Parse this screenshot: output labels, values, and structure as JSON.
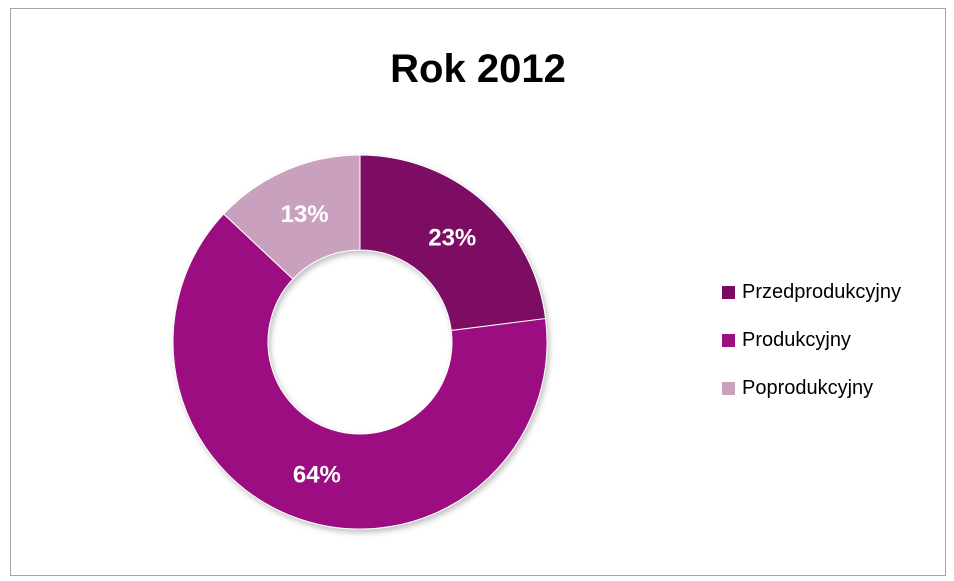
{
  "chart_data": {
    "type": "pie",
    "title": "Rok 2012",
    "categories": [
      "Przedprodukcyjny",
      "Produkcyjny",
      "Poprodukcyjny"
    ],
    "values": [
      23,
      64,
      13
    ],
    "data_labels": [
      "23%",
      "64%",
      "13%"
    ],
    "colors": [
      "#7b0a62",
      "#9b0f80",
      "#c9a0bd"
    ],
    "donut": true,
    "legend_position": "right"
  }
}
